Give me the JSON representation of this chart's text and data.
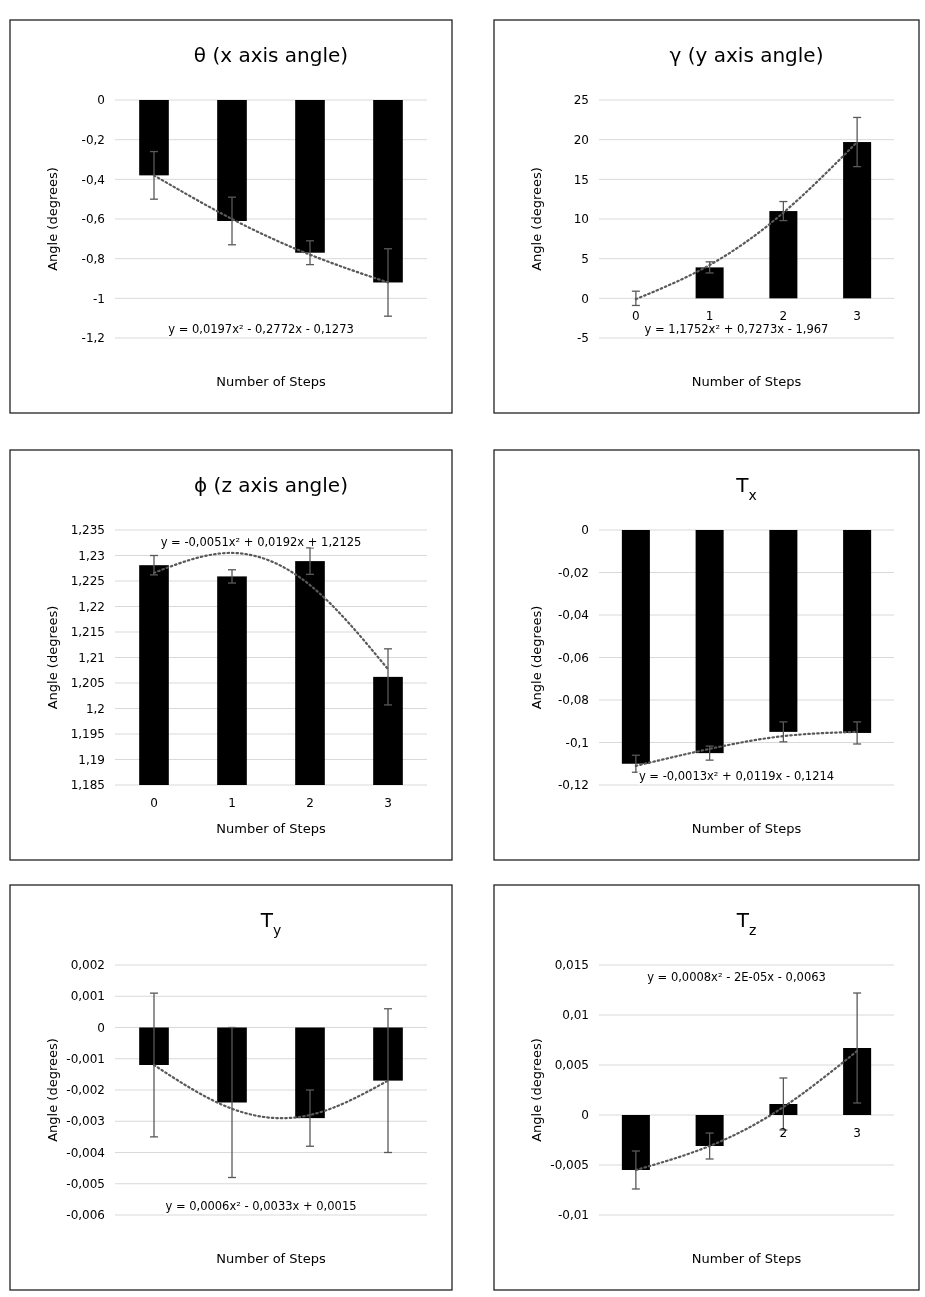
{
  "chart_data": [
    {
      "type": "bar",
      "title": "θ (x axis angle)",
      "xlabel": "Number of Steps",
      "ylabel": "Angle (degrees)",
      "categories": [
        null,
        null,
        null,
        null
      ],
      "tick_labels": "y",
      "grid": "y",
      "ylim": [
        -1.2,
        0
      ],
      "yticks": [
        0,
        {
          "value": -0.2,
          "label": "-0,2"
        },
        {
          "value": -0.4,
          "label": "-0,4"
        },
        {
          "value": -0.6,
          "label": "-0,6"
        },
        {
          "value": -0.8,
          "label": "-0,8"
        },
        -1,
        {
          "value": -1.2,
          "label": "-1,2"
        }
      ],
      "series": [
        {
          "color": "#000000",
          "values": [
            -0.38,
            -0.61,
            -0.77,
            -0.92
          ],
          "errors": [
            0.12,
            0.12,
            0.06,
            0.17
          ]
        },
        {
          "type": "line",
          "color": "#595959",
          "line_style": "dotted",
          "values": [
            -0.38,
            -0.6,
            -0.78,
            -0.92
          ]
        }
      ],
      "annotations": [
        "y = 0,0197x² - 0,2772x - 0,1273"
      ]
    },
    {
      "type": "bar",
      "title": "γ (y axis angle)",
      "xlabel": "Number of Steps",
      "ylabel": "Angle (degrees)",
      "categories": [
        "0",
        "1",
        "2",
        "3"
      ],
      "grid": "y",
      "ylim": [
        -5,
        25
      ],
      "yticks": [
        -5,
        0,
        5,
        10,
        15,
        20,
        25
      ],
      "series": [
        {
          "color": "#000000",
          "values": [
            0,
            3.9,
            11.0,
            19.7
          ],
          "errors": [
            0.9,
            0.7,
            1.2,
            3.1
          ]
        },
        {
          "type": "line",
          "color": "#595959",
          "line_style": "dotted",
          "values": [
            -0.1,
            4.2,
            10.8,
            19.7
          ]
        }
      ],
      "annotations": [
        "y = 1,1752x² + 0,7273x - 1,967"
      ]
    },
    {
      "type": "bar",
      "title": "ϕ (z axis angle)",
      "xlabel": "Number of Steps",
      "ylabel": "Angle (degrees)",
      "categories": [
        "0",
        "1",
        "2",
        "3"
      ],
      "grid": "y",
      "ylim": [
        1.185,
        1.235
      ],
      "yticks": [
        {
          "value": 1.185,
          "label": "1,185"
        },
        {
          "value": 1.19,
          "label": "1,19"
        },
        {
          "value": 1.195,
          "label": "1,195"
        },
        {
          "value": 1.2,
          "label": "1,2"
        },
        {
          "value": 1.205,
          "label": "1,205"
        },
        {
          "value": 1.21,
          "label": "1,21"
        },
        {
          "value": 1.215,
          "label": "1,215"
        },
        {
          "value": 1.22,
          "label": "1,22"
        },
        {
          "value": 1.225,
          "label": "1,225"
        },
        {
          "value": 1.23,
          "label": "1,23"
        },
        {
          "value": 1.235,
          "label": "1,235"
        }
      ],
      "series": [
        {
          "color": "#000000",
          "values": [
            1.2281,
            1.2259,
            1.2289,
            1.2062
          ],
          "errors": [
            0.0019,
            0.0013,
            0.0026,
            0.0055
          ]
        },
        {
          "type": "line",
          "color": "#595959",
          "line_style": "dotted",
          "values": [
            1.2266,
            1.2305,
            1.2242,
            1.2077
          ]
        }
      ],
      "annotations": [
        "y = -0,0051x² + 0,0192x + 1,2125"
      ]
    },
    {
      "type": "bar",
      "title": "T$_{x}$",
      "xlabel": "Number of Steps",
      "ylabel": "Angle (degrees)",
      "categories": [
        null,
        null,
        null,
        null
      ],
      "tick_labels": "y",
      "grid": "y",
      "ylim": [
        -0.12,
        0
      ],
      "yticks": [
        0,
        {
          "value": -0.02,
          "label": "-0,02"
        },
        {
          "value": -0.04,
          "label": "-0,04"
        },
        {
          "value": -0.06,
          "label": "-0,06"
        },
        {
          "value": -0.08,
          "label": "-0,08"
        },
        {
          "value": -0.1,
          "label": "-0,1"
        },
        {
          "value": -0.12,
          "label": "-0,12"
        }
      ],
      "series": [
        {
          "color": "#000000",
          "values": [
            -0.11,
            -0.105,
            -0.095,
            -0.0955
          ],
          "errors": [
            0.004,
            0.0033,
            0.0047,
            0.0052
          ]
        },
        {
          "type": "line",
          "color": "#595959",
          "line_style": "dotted",
          "values": [
            -0.111,
            -0.103,
            -0.097,
            -0.095
          ]
        }
      ],
      "annotations": [
        "y = -0,0013x² + 0,0119x - 0,1214"
      ]
    },
    {
      "type": "bar",
      "title": "T$_{y}$",
      "xlabel": "Number of Steps",
      "ylabel": "Angle (degrees)",
      "categories": [
        null,
        null,
        null,
        null
      ],
      "tick_labels": "y",
      "grid": "y",
      "ylim": [
        -0.006,
        0.002
      ],
      "yticks": [
        {
          "value": -0.006,
          "label": "-0,006"
        },
        {
          "value": -0.005,
          "label": "-0,005"
        },
        {
          "value": -0.004,
          "label": "-0,004"
        },
        {
          "value": -0.003,
          "label": "-0,003"
        },
        {
          "value": -0.002,
          "label": "-0,002"
        },
        {
          "value": -0.001,
          "label": "-0,001"
        },
        0,
        {
          "value": 0.001,
          "label": "0,001"
        },
        {
          "value": 0.002,
          "label": "0,002"
        }
      ],
      "series": [
        {
          "color": "#000000",
          "values": [
            -0.0012,
            -0.0024,
            -0.0029,
            -0.0017
          ],
          "errors": [
            0.0023,
            0.0024,
            0.0009,
            0.0023
          ]
        },
        {
          "type": "line",
          "color": "#595959",
          "line_style": "dotted",
          "values": [
            -0.0012,
            -0.0026,
            -0.0028,
            -0.0017
          ]
        }
      ],
      "annotations": [
        "y = 0,0006x² - 0,0033x + 0,0015"
      ]
    },
    {
      "type": "bar",
      "title": "T$_{z}$",
      "xlabel": "Number of Steps",
      "ylabel": "Angle (degrees)",
      "categories": [
        null,
        null,
        "2",
        "3"
      ],
      "grid": "y",
      "ylim": [
        -0.01,
        0.015
      ],
      "yticks": [
        {
          "value": -0.01,
          "label": "-0,01"
        },
        {
          "value": -0.005,
          "label": "-0,005"
        },
        0,
        {
          "value": 0.005,
          "label": "0,005"
        },
        {
          "value": 0.01,
          "label": "0,01"
        },
        {
          "value": 0.015,
          "label": "0,015"
        }
      ],
      "series": [
        {
          "color": "#000000",
          "values": [
            -0.0055,
            -0.0031,
            0.0011,
            0.0067
          ],
          "errors": [
            0.0019,
            0.0013,
            0.0026,
            0.0055
          ]
        },
        {
          "type": "line",
          "color": "#595959",
          "line_style": "dotted",
          "values": [
            -0.0055,
            -0.0031,
            0.0008,
            0.0064
          ]
        }
      ],
      "annotations": [
        "y = 0,0008x² - 2E-05x - 0,0063"
      ]
    }
  ]
}
